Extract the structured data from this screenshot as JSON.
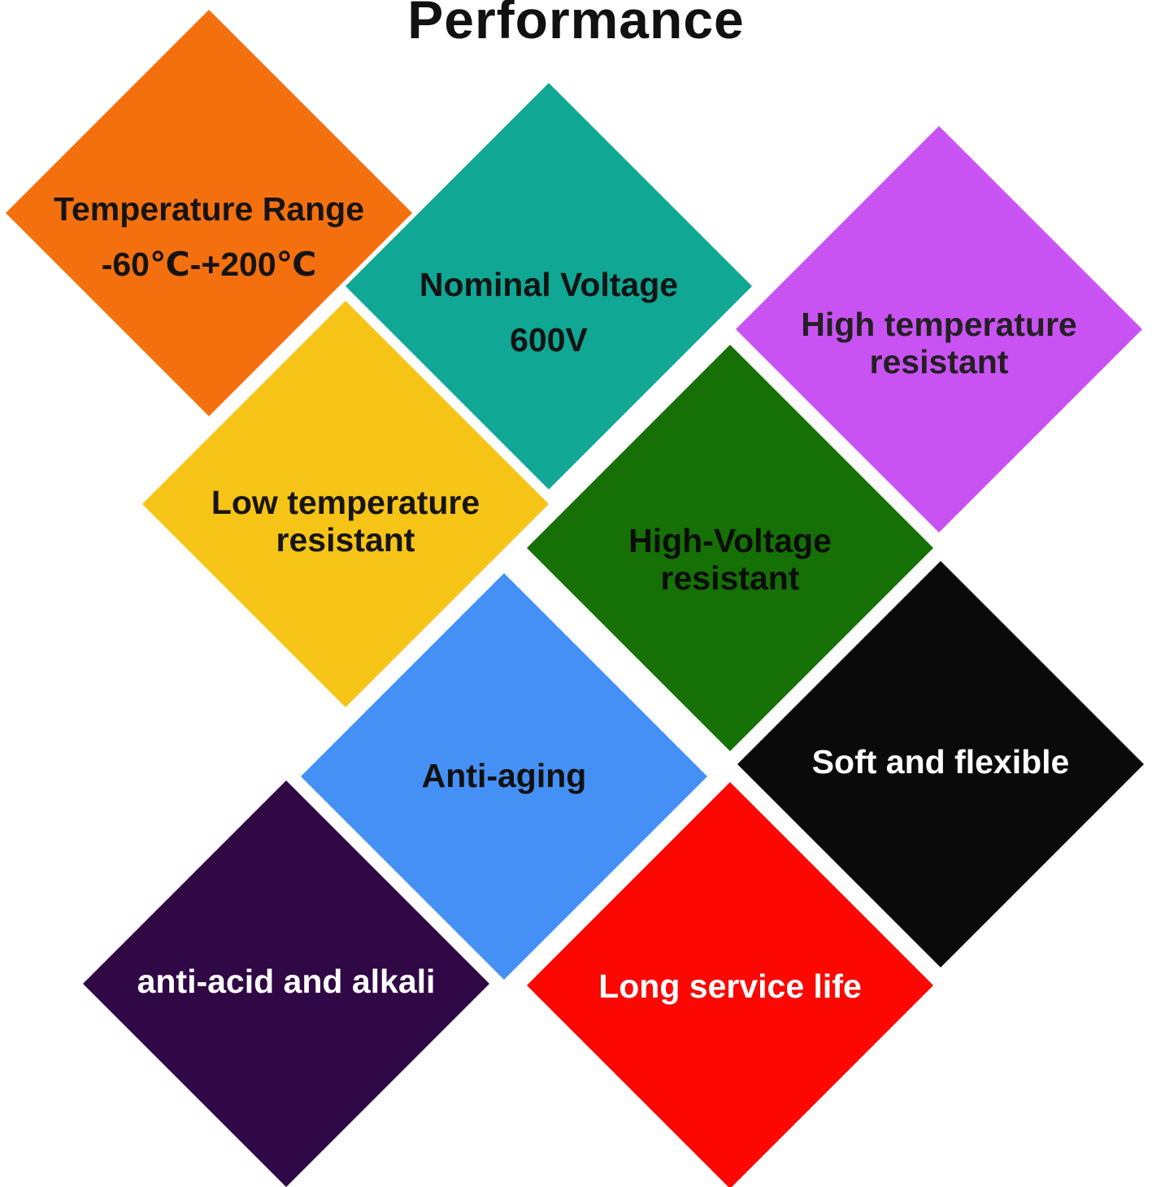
{
  "title": "Performance",
  "diamonds": [
    {
      "name": "temperature-range",
      "color": "#F4700F",
      "text_color": "#161413",
      "lines": [
        "Temperature Range",
        "-60℃-+200℃"
      ]
    },
    {
      "name": "nominal-voltage",
      "color": "#10A794",
      "text_color": "#121413",
      "lines": [
        "Nominal Voltage",
        "600V"
      ]
    },
    {
      "name": "high-temperature-resistant",
      "color": "#C853F2",
      "text_color": "#241F23",
      "lines": [
        "High temperature",
        "resistant"
      ]
    },
    {
      "name": "low-temperature-resistant",
      "color": "#F5C417",
      "text_color": "#181512",
      "lines": [
        "Low temperature",
        "resistant"
      ]
    },
    {
      "name": "high-voltage-resistant",
      "color": "#157005",
      "text_color": "#0B0D0A",
      "lines": [
        "High-Voltage",
        "resistant"
      ]
    },
    {
      "name": "soft-and-flexible",
      "color": "#0A0A0A",
      "text_color": "#FFFFFF",
      "lines": [
        "Soft and flexible"
      ]
    },
    {
      "name": "anti-aging",
      "color": "#4590F5",
      "text_color": "#111110",
      "lines": [
        "Anti-aging"
      ]
    },
    {
      "name": "anti-acid-and-alkali",
      "color": "#300845",
      "text_color": "#FFFFFF",
      "lines": [
        "anti-acid and alkali"
      ]
    },
    {
      "name": "long-service-life",
      "color": "#FC0702",
      "text_color": "#FFFFFF",
      "lines": [
        "Long service life"
      ]
    }
  ]
}
